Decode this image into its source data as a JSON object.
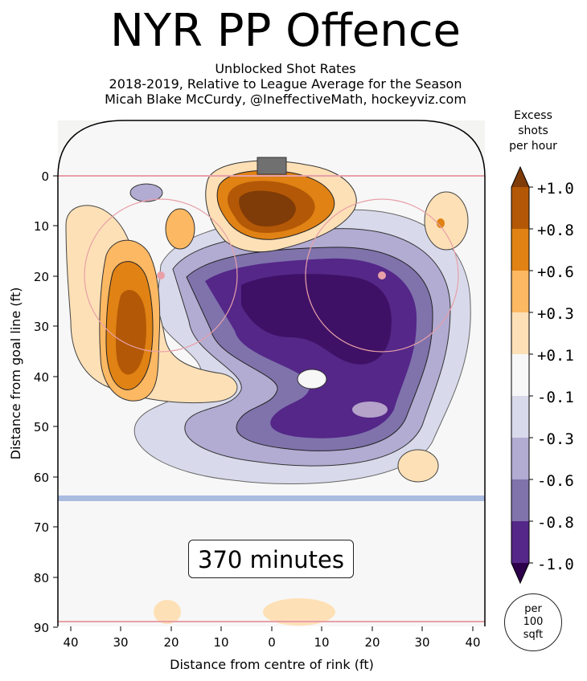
{
  "chart_data": {
    "type": "heatmap",
    "title": "NYR PP Offence",
    "subtitle_lines": [
      "Unblocked Shot Rates",
      "2018-2019, Relative to League Average for the Season",
      "Micah Blake McCurdy, @IneffectiveMath, hockeyviz.com"
    ],
    "xlabel": "Distance from centre of rink (ft)",
    "ylabel": "Distance from goal line (ft)",
    "x_ticks": [
      "40",
      "30",
      "20",
      "10",
      "0",
      "10",
      "20",
      "30",
      "40"
    ],
    "y_ticks": [
      "0",
      "10",
      "20",
      "30",
      "40",
      "50",
      "60",
      "70",
      "80",
      "90"
    ],
    "xlim": [
      -42.5,
      42.5
    ],
    "ylim": [
      -11,
      90
    ],
    "colorbar": {
      "title_lines": [
        "Excess",
        "shots",
        "per hour"
      ],
      "ticks": [
        "+1.0",
        "+0.8",
        "+0.6",
        "+0.3",
        "+0.1",
        "-0.1",
        "-0.3",
        "-0.6",
        "-0.8",
        "-1.0"
      ],
      "colors": [
        "#7f3b08",
        "#b35806",
        "#e08214",
        "#fdb863",
        "#fee0b6",
        "#f7f7f7",
        "#d8daeb",
        "#b2abd2",
        "#8073ac",
        "#542788",
        "#2d004b"
      ]
    },
    "annotation": "370 minutes",
    "unit_note_lines": [
      "per",
      "100",
      "sqft"
    ]
  }
}
